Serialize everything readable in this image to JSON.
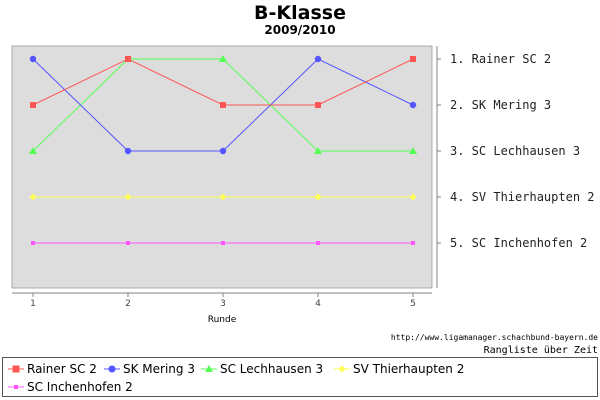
{
  "chart_data": {
    "type": "line",
    "title": "B-Klasse",
    "subtitle": "2009/2010",
    "xlabel": "Runde",
    "ylabel": "",
    "x": [
      1,
      2,
      3,
      4,
      5
    ],
    "ylim": [
      1,
      5
    ],
    "y_inverted": true,
    "grid": false,
    "legend_position": "bottom",
    "series": [
      {
        "name": "Rainer SC 2",
        "color": "#ff5555",
        "marker": "square",
        "values": [
          2,
          1,
          2,
          2,
          1
        ]
      },
      {
        "name": "SK Mering 3",
        "color": "#5555ff",
        "marker": "circle",
        "values": [
          1,
          3,
          3,
          1,
          2
        ]
      },
      {
        "name": "SC Lechhausen 3",
        "color": "#55ff55",
        "marker": "triangle",
        "values": [
          3,
          1,
          1,
          3,
          3
        ]
      },
      {
        "name": "SV Thierhaupten 2",
        "color": "#ffff55",
        "marker": "diamond",
        "values": [
          4,
          4,
          4,
          4,
          4
        ]
      },
      {
        "name": "SC Inchenhofen 2",
        "color": "#ff55ff",
        "marker": "square-small",
        "values": [
          5,
          5,
          5,
          5,
          5
        ]
      }
    ],
    "standings": [
      {
        "rank": 1,
        "label": "1. Rainer SC 2"
      },
      {
        "rank": 2,
        "label": "2. SK Mering 3"
      },
      {
        "rank": 3,
        "label": "3. SC Lechhausen 3"
      },
      {
        "rank": 4,
        "label": "4. SV Thierhaupten 2"
      },
      {
        "rank": 5,
        "label": "5. SC Inchenhofen 2"
      }
    ]
  },
  "footer": {
    "source_url": "http://www.ligamanager.schachbund-bayern.de",
    "caption": "Rangliste über Zeit"
  }
}
